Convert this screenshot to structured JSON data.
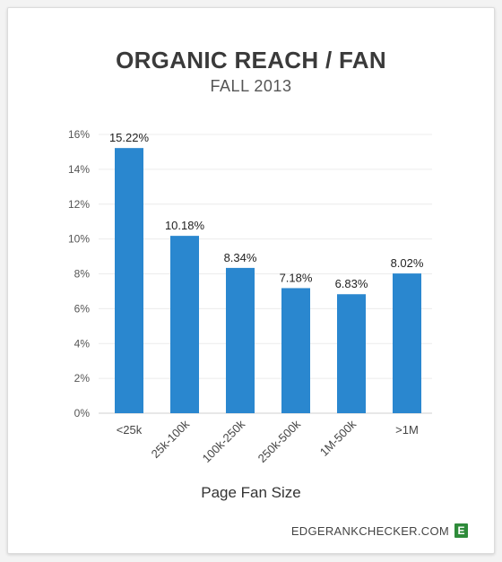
{
  "chart_data": {
    "type": "bar",
    "title": "ORGANIC REACH / FAN",
    "subtitle": "FALL 2013",
    "xlabel": "Page Fan Size",
    "ylabel": "",
    "categories": [
      "<25k",
      "25k-100k",
      "100k-250k",
      "250k-500k",
      "1M-500k",
      ">1M"
    ],
    "values": [
      15.22,
      10.18,
      8.34,
      7.18,
      6.83,
      8.02
    ],
    "data_labels": [
      "15.22%",
      "10.18%",
      "8.34%",
      "7.18%",
      "6.83%",
      "8.02%"
    ],
    "ylim": [
      0,
      16
    ],
    "yticks": [
      0,
      2,
      4,
      6,
      8,
      10,
      12,
      14,
      16
    ],
    "ytick_labels": [
      "0%",
      "2%",
      "4%",
      "6%",
      "8%",
      "10%",
      "12%",
      "14%",
      "16%"
    ],
    "grid": true,
    "bar_color": "#2a87cf"
  },
  "footer": {
    "source": "EDGERANKCHECKER.COM",
    "logo_letter": "E",
    "logo_color": "#2e8b3a"
  }
}
